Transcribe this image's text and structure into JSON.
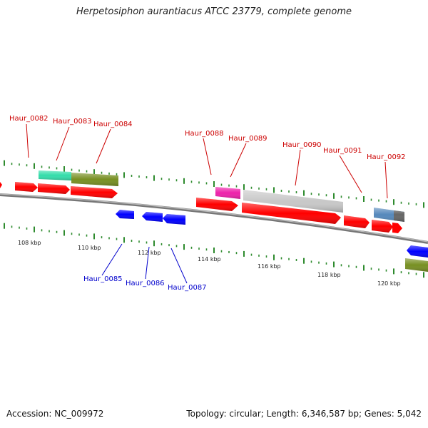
{
  "title": "Herpetosiphon aurantiacus ATCC 23779, complete genome",
  "accession": "Accession: NC_009972",
  "topology": "Topology: circular; Length: 6,346,587 bp; Genes: 5,042",
  "colors": {
    "plus_strand_label": "#cc0000",
    "minus_strand_label": "#0000cc",
    "cds_plus": "#ff0000",
    "cds_minus": "#0000ff",
    "backbone": "#888888",
    "tick": "#2e8b2e",
    "teal": "#33ddaa",
    "olive": "#778f22",
    "magenta": "#ee22aa",
    "gray": "#c8c8c8",
    "steelblue": "#5588bb"
  },
  "top_genes": [
    {
      "id": "Haur_0082"
    },
    {
      "id": "Haur_0083"
    },
    {
      "id": "Haur_0084"
    },
    {
      "id": "Haur_0088"
    },
    {
      "id": "Haur_0089"
    },
    {
      "id": "Haur_0090"
    },
    {
      "id": "Haur_0091"
    },
    {
      "id": "Haur_0092"
    }
  ],
  "bottom_genes": [
    {
      "id": "Haur_0085"
    },
    {
      "id": "Haur_0086"
    },
    {
      "id": "Haur_0087"
    }
  ],
  "kbp_ticks": [
    "108 kbp",
    "110 kbp",
    "112 kbp",
    "114 kbp",
    "116 kbp",
    "118 kbp",
    "120 kbp"
  ]
}
